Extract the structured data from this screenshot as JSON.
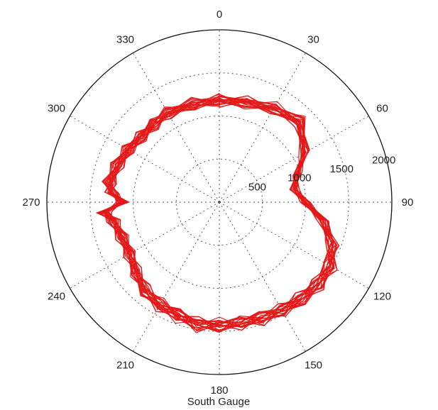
{
  "chart_data": {
    "type": "polar-line",
    "title": "",
    "xlabel": "South Gauge",
    "angle_direction": "clockwise",
    "zero_position": "top",
    "angle_ticks": [
      0,
      30,
      60,
      90,
      120,
      150,
      180,
      210,
      240,
      270,
      300,
      330
    ],
    "angle_tick_labels": [
      "0",
      "30",
      "60",
      "90",
      "120",
      "150",
      "180",
      "210",
      "240",
      "270",
      "300",
      "330"
    ],
    "radial_ticks": [
      500,
      1000,
      1500,
      2000
    ],
    "radial_tick_labels": [
      "500",
      "1000",
      "1500",
      "2000"
    ],
    "rlim": [
      0,
      2000
    ],
    "grid": true,
    "line_color": "#e31a1a",
    "series": [
      {
        "angle": [
          0,
          15,
          30,
          45,
          60,
          70,
          80,
          90,
          100,
          110,
          120,
          130,
          140,
          150,
          160,
          170,
          180,
          190,
          200,
          210,
          220,
          230,
          240,
          250,
          260,
          265,
          270,
          275,
          280,
          290,
          300,
          310,
          320,
          330,
          345,
          360
        ],
        "r": [
          1180,
          1200,
          1260,
          1320,
          1140,
          960,
          880,
          1000,
          1220,
          1390,
          1480,
          1490,
          1470,
          1450,
          1430,
          1420,
          1430,
          1440,
          1400,
          1380,
          1340,
          1260,
          1200,
          1200,
          1250,
          1340,
          1120,
          1250,
          1300,
          1260,
          1220,
          1180,
          1180,
          1200,
          1180,
          1180
        ]
      }
    ]
  }
}
